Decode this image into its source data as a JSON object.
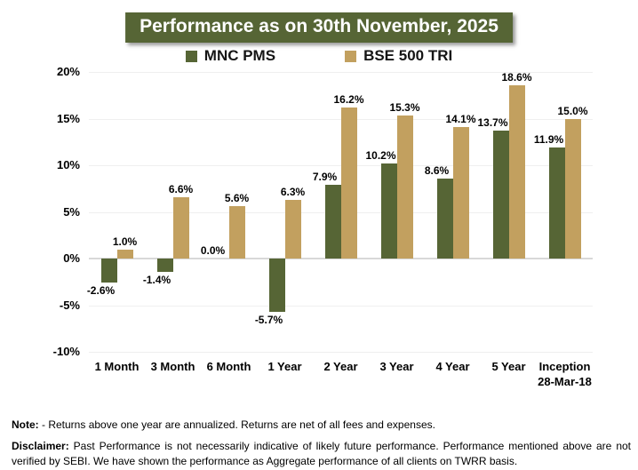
{
  "title": "Performance as on 30th November, 2025",
  "colors": {
    "mnc_pms": "#566535",
    "bse_500_tri": "#C2A05F",
    "title_background": "#566535",
    "gridline": "#EFEFEF",
    "zero_axis": "#D8D8D8"
  },
  "chart_data": {
    "type": "bar",
    "title": "Performance as on 30th November, 2025",
    "categories": [
      "1 Month",
      "3 Month",
      "6 Month",
      "1 Year",
      "2 Year",
      "3 Year",
      "4 Year",
      "5 Year",
      "Inception\n28-Mar-18"
    ],
    "series": [
      {
        "name": "MNC PMS",
        "color": "#566535",
        "values": [
          -2.6,
          -1.4,
          0.0,
          -5.7,
          7.9,
          10.2,
          8.6,
          13.7,
          11.9
        ],
        "labels": [
          "-2.6%",
          "-1.4%",
          "0.0%",
          "-5.7%",
          "7.9%",
          "10.2%",
          "8.6%",
          "13.7%",
          "11.9%"
        ]
      },
      {
        "name": "BSE 500 TRI",
        "color": "#C2A05F",
        "values": [
          1.0,
          6.6,
          5.6,
          6.3,
          16.2,
          15.3,
          14.1,
          18.6,
          15.0
        ],
        "labels": [
          "1.0%",
          "6.6%",
          "5.6%",
          "6.3%",
          "16.2%",
          "15.3%",
          "14.1%",
          "18.6%",
          "15.0%"
        ]
      }
    ],
    "xlabel": "",
    "ylabel": "",
    "ylim": [
      -10,
      20
    ],
    "yticks": [
      {
        "value": 20,
        "label": "20%"
      },
      {
        "value": 15,
        "label": "15%"
      },
      {
        "value": 10,
        "label": "10%"
      },
      {
        "value": 5,
        "label": "5%"
      },
      {
        "value": 0,
        "label": "0%"
      },
      {
        "value": -5,
        "label": "-5%"
      },
      {
        "value": -10,
        "label": "-10%"
      }
    ],
    "grid": true,
    "legend_position": "top"
  },
  "footnotes": {
    "note_label": "Note:",
    "note_text": " - Returns above one year are annualized. Returns are net of all fees and expenses.",
    "disclaimer_label": "Disclaimer:",
    "disclaimer_text": " Past Performance is not necessarily indicative of likely future performance. Performance mentioned above are not verified by SEBI. We have shown the performance as Aggregate performance of all clients on TWRR basis."
  }
}
